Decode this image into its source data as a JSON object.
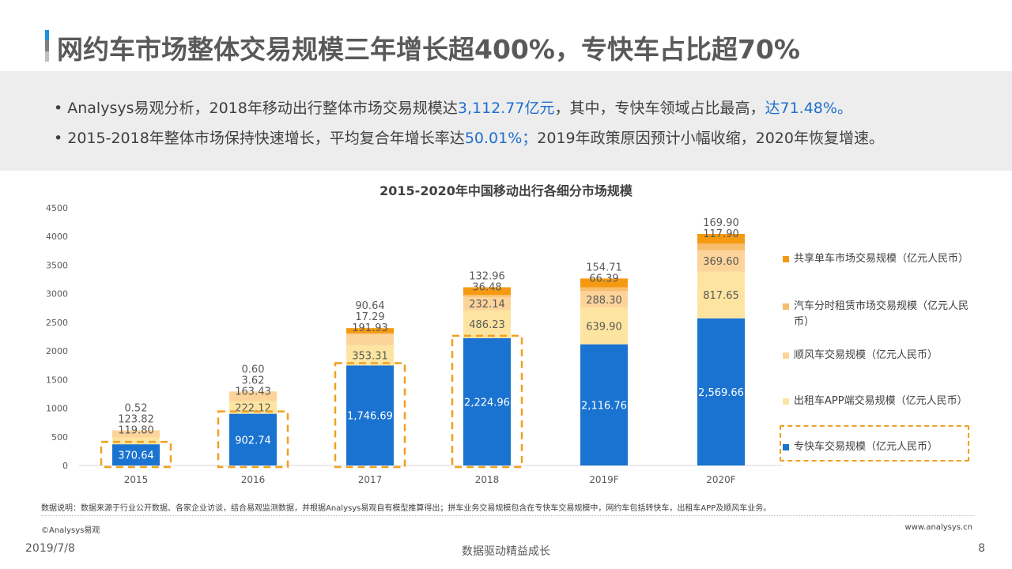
{
  "header": {
    "title": "网约车市场整体交易规模三年增长超400%，专快车占比超70%",
    "marker_colors": [
      "#1e90e0",
      "#7f7f7f",
      "#bfbfbf"
    ]
  },
  "bullets": [
    {
      "pre": "• Analysys易观分析，2018年移动出行整体市场交易规模达",
      "hl1": "3,112.77亿元",
      "mid": "，其中，专快车领域占比最高，",
      "hl2": "达71.48%。",
      "post": ""
    },
    {
      "pre": "• 2015-2018年整体市场保持快速增长，平均复合年增长率达",
      "hl1": "50.01%；",
      "mid": "2019年政策原因预计小幅收缩，2020年恢复增速。",
      "hl2": "",
      "post": ""
    }
  ],
  "highlight_color": "#1f6fcf",
  "chart_data": {
    "type": "bar",
    "stacked": true,
    "title": "2015-2020年中国移动出行各细分市场规模",
    "categories": [
      "2015",
      "2016",
      "2017",
      "2018",
      "2019F",
      "2020F"
    ],
    "ylim": [
      0,
      4500
    ],
    "yticks": [
      0,
      500,
      1000,
      1500,
      2000,
      2500,
      3000,
      3500,
      4000,
      4500
    ],
    "grid": false,
    "legend": "right",
    "series": [
      {
        "name": "专快车交易规模（亿元人民币）",
        "color": "#1a73d0",
        "values": [
          370.64,
          902.74,
          1746.69,
          2224.96,
          2116.76,
          2569.66
        ]
      },
      {
        "name": "出租车APP端交易规模（亿元人民币）",
        "color": "#fde4a0",
        "values": [
          119.8,
          222.12,
          353.31,
          486.23,
          639.9,
          817.65
        ]
      },
      {
        "name": "顺风车交易规模（亿元人民币）",
        "color": "#fcd49a",
        "values": [
          123.82,
          163.43,
          191.93,
          232.14,
          288.3,
          369.6
        ]
      },
      {
        "name": "汽车分时租赁市场交易规模（亿元人民币）",
        "color": "#f8bd6c",
        "values": [
          0.52,
          3.62,
          17.29,
          36.48,
          66.39,
          117.9
        ]
      },
      {
        "name": "共享单车市场交易规模（亿元人民币）",
        "color": "#f59a10",
        "values": [
          null,
          0.6,
          90.64,
          132.96,
          154.71,
          169.9
        ]
      }
    ],
    "highlight_box_color": "#f0a020"
  },
  "footer": {
    "note": "数据说明：数据来源于行业公开数据、各家企业访谈，结合易观监测数据，并根据Analysys易观自有模型推算得出；拼车业务交易规模包含在专快车交易规模中，网约车包括转快车，出租车APP及顺风车业务。",
    "copyright": "©Analysys易观",
    "website": "www.analysys.cn",
    "date": "2019/7/8",
    "slogan": "数据驱动精益成长",
    "page": "8"
  }
}
